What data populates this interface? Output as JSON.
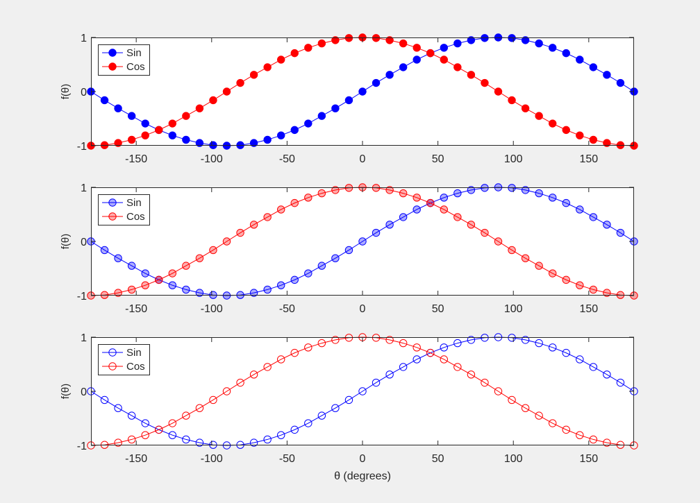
{
  "chart_data": [
    {
      "type": "line",
      "title": "",
      "xlabel": "",
      "ylabel": "f(θ)",
      "xlim": [
        -180,
        180
      ],
      "ylim": [
        -1,
        1
      ],
      "xticks": [
        -150,
        -100,
        -50,
        0,
        50,
        100,
        150
      ],
      "yticks": [
        -1,
        0,
        1
      ],
      "grid": false,
      "legend_position": "top-left",
      "marker_style": "filled",
      "x": [
        -180,
        -171,
        -162,
        -153,
        -144,
        -135,
        -126,
        -117,
        -108,
        -99,
        -90,
        -81,
        -72,
        -63,
        -54,
        -45,
        -36,
        -27,
        -18,
        -9,
        0,
        9,
        18,
        27,
        36,
        45,
        54,
        63,
        72,
        81,
        90,
        99,
        108,
        117,
        126,
        135,
        144,
        153,
        162,
        171,
        180
      ],
      "series": [
        {
          "name": "Sin",
          "color": "#0000ff",
          "values": [
            0.0,
            -0.16,
            -0.31,
            -0.45,
            -0.59,
            -0.71,
            -0.81,
            -0.89,
            -0.95,
            -0.99,
            -1.0,
            -0.99,
            -0.95,
            -0.89,
            -0.81,
            -0.71,
            -0.59,
            -0.45,
            -0.31,
            -0.16,
            0.0,
            0.16,
            0.31,
            0.45,
            0.59,
            0.71,
            0.81,
            0.89,
            0.95,
            0.99,
            1.0,
            0.99,
            0.95,
            0.89,
            0.81,
            0.71,
            0.59,
            0.45,
            0.31,
            0.16,
            0.0
          ]
        },
        {
          "name": "Cos",
          "color": "#ff0000",
          "values": [
            -1.0,
            -0.99,
            -0.95,
            -0.89,
            -0.81,
            -0.71,
            -0.59,
            -0.45,
            -0.31,
            -0.16,
            0.0,
            0.16,
            0.31,
            0.45,
            0.59,
            0.71,
            0.81,
            0.89,
            0.95,
            0.99,
            1.0,
            0.99,
            0.95,
            0.89,
            0.81,
            0.71,
            0.59,
            0.45,
            0.31,
            0.16,
            0.0,
            -0.16,
            -0.31,
            -0.45,
            -0.59,
            -0.71,
            -0.81,
            -0.89,
            -0.95,
            -0.99,
            -1.0
          ]
        }
      ]
    },
    {
      "type": "line",
      "title": "",
      "xlabel": "",
      "ylabel": "f(θ)",
      "xlim": [
        -180,
        180
      ],
      "ylim": [
        -1,
        1
      ],
      "xticks": [
        -150,
        -100,
        -50,
        0,
        50,
        100,
        150
      ],
      "yticks": [
        -1,
        0,
        1
      ],
      "grid": false,
      "legend_position": "top-left",
      "marker_style": "translucent",
      "x": [
        -180,
        -171,
        -162,
        -153,
        -144,
        -135,
        -126,
        -117,
        -108,
        -99,
        -90,
        -81,
        -72,
        -63,
        -54,
        -45,
        -36,
        -27,
        -18,
        -9,
        0,
        9,
        18,
        27,
        36,
        45,
        54,
        63,
        72,
        81,
        90,
        99,
        108,
        117,
        126,
        135,
        144,
        153,
        162,
        171,
        180
      ],
      "series": [
        {
          "name": "Sin",
          "color": "#0000ff",
          "values": [
            0.0,
            -0.16,
            -0.31,
            -0.45,
            -0.59,
            -0.71,
            -0.81,
            -0.89,
            -0.95,
            -0.99,
            -1.0,
            -0.99,
            -0.95,
            -0.89,
            -0.81,
            -0.71,
            -0.59,
            -0.45,
            -0.31,
            -0.16,
            0.0,
            0.16,
            0.31,
            0.45,
            0.59,
            0.71,
            0.81,
            0.89,
            0.95,
            0.99,
            1.0,
            0.99,
            0.95,
            0.89,
            0.81,
            0.71,
            0.59,
            0.45,
            0.31,
            0.16,
            0.0
          ]
        },
        {
          "name": "Cos",
          "color": "#ff0000",
          "values": [
            -1.0,
            -0.99,
            -0.95,
            -0.89,
            -0.81,
            -0.71,
            -0.59,
            -0.45,
            -0.31,
            -0.16,
            0.0,
            0.16,
            0.31,
            0.45,
            0.59,
            0.71,
            0.81,
            0.89,
            0.95,
            0.99,
            1.0,
            0.99,
            0.95,
            0.89,
            0.81,
            0.71,
            0.59,
            0.45,
            0.31,
            0.16,
            0.0,
            -0.16,
            -0.31,
            -0.45,
            -0.59,
            -0.71,
            -0.81,
            -0.89,
            -0.95,
            -0.99,
            -1.0
          ]
        }
      ]
    },
    {
      "type": "line",
      "title": "",
      "xlabel": "θ (degrees)",
      "ylabel": "f(θ)",
      "xlim": [
        -180,
        180
      ],
      "ylim": [
        -1,
        1
      ],
      "xticks": [
        -150,
        -100,
        -50,
        0,
        50,
        100,
        150
      ],
      "yticks": [
        -1,
        0,
        1
      ],
      "grid": false,
      "legend_position": "top-left",
      "marker_style": "hollow",
      "x": [
        -180,
        -171,
        -162,
        -153,
        -144,
        -135,
        -126,
        -117,
        -108,
        -99,
        -90,
        -81,
        -72,
        -63,
        -54,
        -45,
        -36,
        -27,
        -18,
        -9,
        0,
        9,
        18,
        27,
        36,
        45,
        54,
        63,
        72,
        81,
        90,
        99,
        108,
        117,
        126,
        135,
        144,
        153,
        162,
        171,
        180
      ],
      "series": [
        {
          "name": "Sin",
          "color": "#0000ff",
          "values": [
            0.0,
            -0.16,
            -0.31,
            -0.45,
            -0.59,
            -0.71,
            -0.81,
            -0.89,
            -0.95,
            -0.99,
            -1.0,
            -0.99,
            -0.95,
            -0.89,
            -0.81,
            -0.71,
            -0.59,
            -0.45,
            -0.31,
            -0.16,
            0.0,
            0.16,
            0.31,
            0.45,
            0.59,
            0.71,
            0.81,
            0.89,
            0.95,
            0.99,
            1.0,
            0.99,
            0.95,
            0.89,
            0.81,
            0.71,
            0.59,
            0.45,
            0.31,
            0.16,
            0.0
          ]
        },
        {
          "name": "Cos",
          "color": "#ff0000",
          "values": [
            -1.0,
            -0.99,
            -0.95,
            -0.89,
            -0.81,
            -0.71,
            -0.59,
            -0.45,
            -0.31,
            -0.16,
            0.0,
            0.16,
            0.31,
            0.45,
            0.59,
            0.71,
            0.81,
            0.89,
            0.95,
            0.99,
            1.0,
            0.99,
            0.95,
            0.89,
            0.81,
            0.71,
            0.59,
            0.45,
            0.31,
            0.16,
            0.0,
            -0.16,
            -0.31,
            -0.45,
            -0.59,
            -0.71,
            -0.81,
            -0.89,
            -0.95,
            -0.99,
            -1.0
          ]
        }
      ]
    }
  ]
}
